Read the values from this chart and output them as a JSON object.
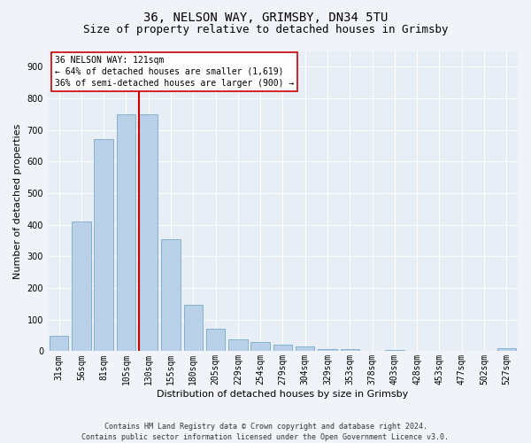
{
  "title_line1": "36, NELSON WAY, GRIMSBY, DN34 5TU",
  "title_line2": "Size of property relative to detached houses in Grimsby",
  "xlabel": "Distribution of detached houses by size in Grimsby",
  "ylabel": "Number of detached properties",
  "footer_line1": "Contains HM Land Registry data © Crown copyright and database right 2024.",
  "footer_line2": "Contains public sector information licensed under the Open Government Licence v3.0.",
  "categories": [
    "31sqm",
    "56sqm",
    "81sqm",
    "105sqm",
    "130sqm",
    "155sqm",
    "180sqm",
    "205sqm",
    "229sqm",
    "254sqm",
    "279sqm",
    "304sqm",
    "329sqm",
    "353sqm",
    "378sqm",
    "403sqm",
    "428sqm",
    "453sqm",
    "477sqm",
    "502sqm",
    "527sqm"
  ],
  "values": [
    50,
    410,
    670,
    750,
    750,
    355,
    148,
    70,
    38,
    30,
    22,
    14,
    8,
    8,
    0,
    5,
    0,
    0,
    0,
    0,
    10
  ],
  "bar_color": "#b8d0e8",
  "bar_edge_color": "#7aaac8",
  "vline_color": "#cc0000",
  "annotation_text": "36 NELSON WAY: 121sqm\n← 64% of detached houses are smaller (1,619)\n36% of semi-detached houses are larger (900) →",
  "annotation_box_color": "#ffffff",
  "annotation_box_edge": "#cc0000",
  "ylim": [
    0,
    950
  ],
  "yticks": [
    0,
    100,
    200,
    300,
    400,
    500,
    600,
    700,
    800,
    900
  ],
  "background_color": "#e8eef5",
  "grid_color": "#ffffff",
  "fig_background": "#f0f4f8",
  "title_fontsize": 10,
  "subtitle_fontsize": 9,
  "axis_label_fontsize": 8,
  "tick_fontsize": 7,
  "footer_fontsize": 6,
  "annotation_fontsize": 7
}
